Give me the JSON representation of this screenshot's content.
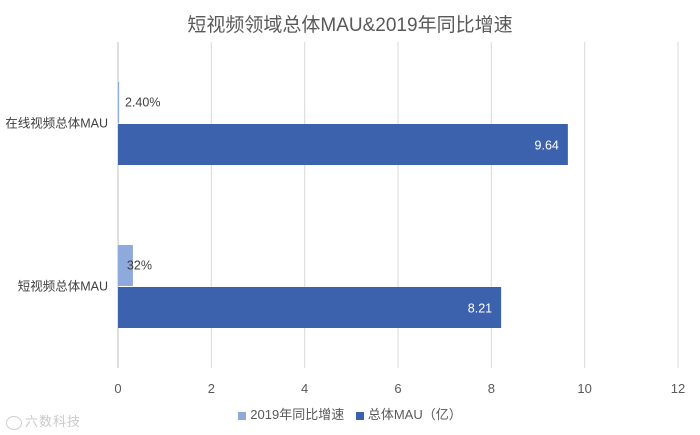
{
  "chart_data": {
    "type": "bar",
    "orientation": "horizontal",
    "title": "短视频领域总体MAU&2019年同比增速",
    "categories": [
      "在线视频总体MAU",
      "短视频总体MAU"
    ],
    "series": [
      {
        "name": "2019年同比增速",
        "values": [
          0.024,
          0.32
        ],
        "labels": [
          "2.40%",
          "32%"
        ],
        "color": "#8EA9DB"
      },
      {
        "name": "总体MAU（亿）",
        "values": [
          9.64,
          8.21
        ],
        "labels": [
          "9.64",
          "8.21"
        ],
        "color": "#3C62AE"
      }
    ],
    "xlim": [
      0,
      12
    ],
    "xticks": [
      "0",
      "2",
      "4",
      "6",
      "8",
      "10",
      "12"
    ],
    "grid": true,
    "legend": "bottom-center"
  },
  "watermark": {
    "text": "六数科技",
    "icon": "logo-icon"
  }
}
